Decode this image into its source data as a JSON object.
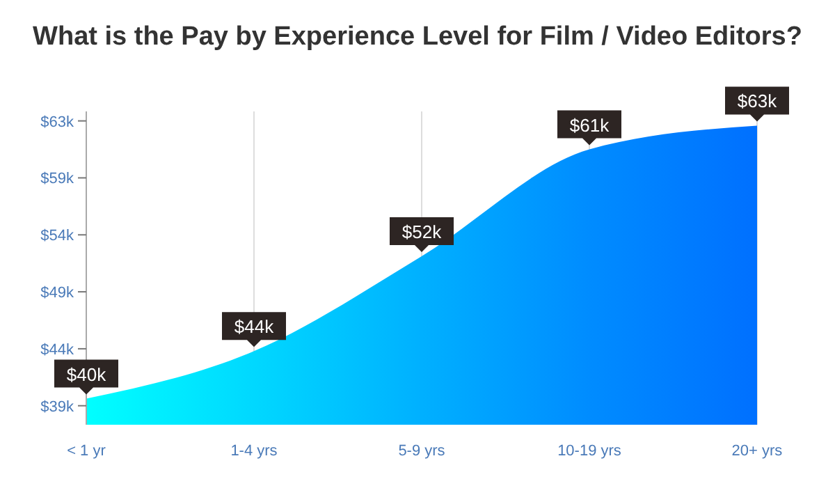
{
  "chart_data": {
    "type": "area",
    "title": "What is the Pay by Experience Level for Film / Video Editors?",
    "categories": [
      "< 1 yr",
      "1-4 yrs",
      "5-9 yrs",
      "10-19 yrs",
      "20+ yrs"
    ],
    "values": [
      40,
      44,
      52,
      61,
      63
    ],
    "value_labels": [
      "$40k",
      "$44k",
      "$52k",
      "$61k",
      "$63k"
    ],
    "colors": [
      "#00ffff",
      "#00d8ff",
      "#00b0ff",
      "#008cff",
      "#0070ff"
    ],
    "ylim": [
      37.8,
      64.2
    ],
    "yticks": [
      {
        "value": 39.4,
        "label": "$39k"
      },
      {
        "value": 44.2,
        "label": "$44k"
      },
      {
        "value": 49.0,
        "label": "$49k"
      },
      {
        "value": 53.8,
        "label": "$54k"
      },
      {
        "value": 58.6,
        "label": "$59k"
      },
      {
        "value": 63.4,
        "label": "$63k"
      }
    ],
    "grid": "x"
  }
}
